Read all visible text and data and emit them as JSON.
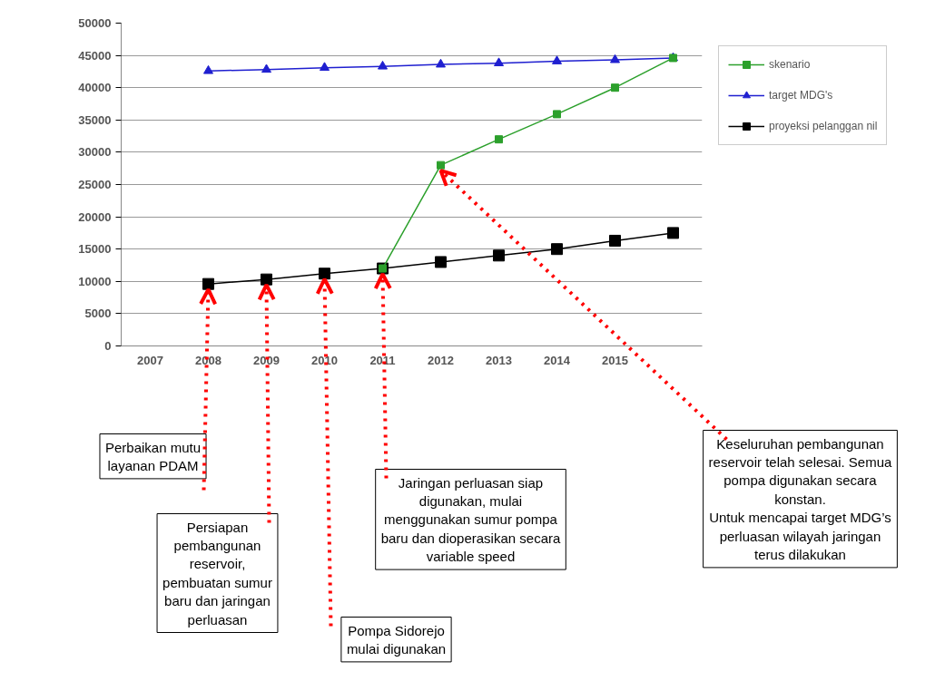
{
  "chart_data": {
    "type": "line",
    "categories": [
      "2007",
      "2008",
      "2009",
      "2010",
      "2011",
      "2012",
      "2013",
      "2014",
      "2015",
      null
    ],
    "series": [
      {
        "name": "skenario",
        "color": "#2ca02c",
        "marker": "square",
        "values": [
          null,
          null,
          null,
          null,
          12000,
          28000,
          32000,
          35900,
          40000,
          44600
        ]
      },
      {
        "name": "target MDG's",
        "color": "#1f1fd0",
        "marker": "triangle",
        "values": [
          null,
          42600,
          42800,
          43100,
          43300,
          43600,
          43800,
          44100,
          44300,
          44600
        ]
      },
      {
        "name": "proyeksi pelanggan nil",
        "color": "#000000",
        "marker": "square",
        "values": [
          null,
          9600,
          10300,
          11200,
          12000,
          13000,
          14000,
          15000,
          16300,
          17500
        ]
      }
    ],
    "ylim": [
      0,
      50000
    ],
    "yticks": [
      0,
      5000,
      10000,
      15000,
      20000,
      25000,
      30000,
      35000,
      40000,
      45000,
      50000
    ],
    "grid": "y",
    "legend": "right",
    "annotations": [
      {
        "text": "Perbaikan mutu\nlayanan PDAM",
        "x": "2008",
        "y": 9600
      },
      {
        "text": "Persiapan\npembangunan\nreservoir,\npembuatan sumur\nbaru dan jaringan\nperluasan",
        "x": "2009",
        "y": 10300
      },
      {
        "text": "Pompa Sidorejo\nmulai digunakan",
        "x": "2010",
        "y": 11200
      },
      {
        "text": "Jaringan perluasan siap\ndigunakan, mulai\nmenggunakan sumur pompa\nbaru dan dioperasikan secara\nvariable speed",
        "x": "2011",
        "y": 12000
      },
      {
        "text": "Keseluruhan pembangunan\nreservoir telah selesai. Semua\npompa digunakan secara\nkonstan.\nUntuk mencapai target MDG’s\nperluasan wilayah jaringan\nterus dilakukan",
        "x": "2012",
        "y": 28000
      }
    ]
  }
}
